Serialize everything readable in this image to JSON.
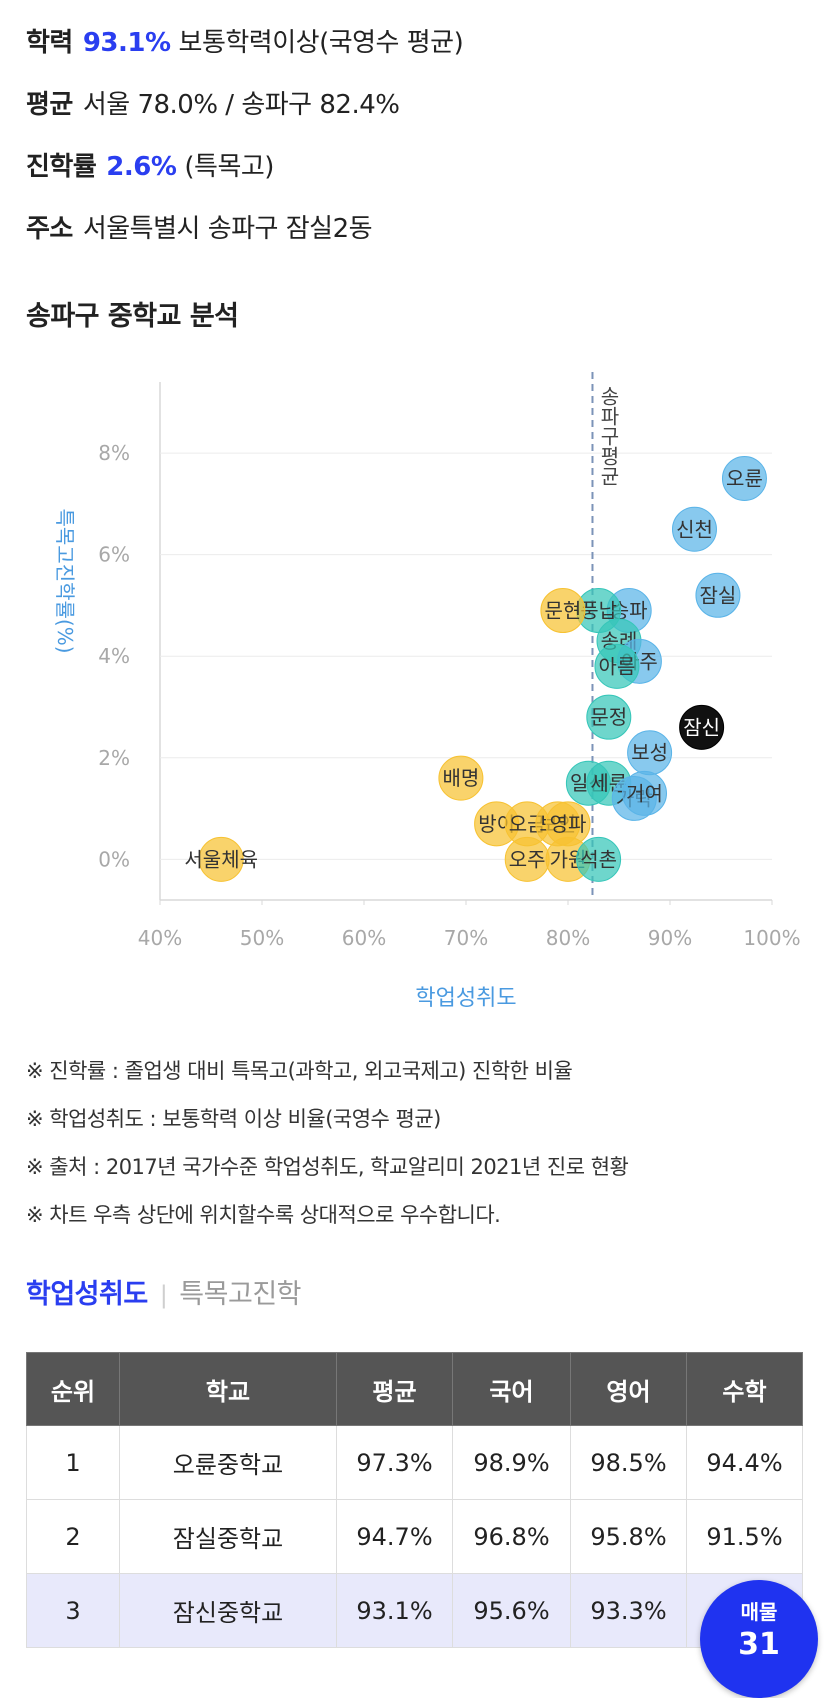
{
  "summary": {
    "line1": {
      "label": "학력",
      "value": "93.1%",
      "rest": "보통학력이상(국영수 평균)"
    },
    "line2": {
      "label": "평균",
      "rest": "서울 78.0% / 송파구 82.4%"
    },
    "line3": {
      "label": "진학률",
      "value": "2.6%",
      "rest": "(특목고)"
    },
    "line4": {
      "label": "주소",
      "rest": "서울특별시 송파구 잠실2동"
    }
  },
  "section_title": "송파구 중학교 분석",
  "chart_data": {
    "type": "scatter",
    "xlabel": "학업성취도",
    "ylabel": "특목고진학률(%)",
    "x_ticks": [
      "40%",
      "50%",
      "60%",
      "70%",
      "80%",
      "90%",
      "100%"
    ],
    "y_ticks": [
      "0%",
      "2%",
      "4%",
      "6%",
      "8%"
    ],
    "xlim": [
      40,
      100
    ],
    "ylim": [
      -0.8,
      9.4
    ],
    "grid": true,
    "reference_line": {
      "x": 82.4,
      "label": "송파구평균"
    },
    "colors": {
      "blue": "#5ab4e8",
      "teal": "#36c6b9",
      "yellow": "#f7c232",
      "black": "#111111"
    },
    "points": [
      {
        "name": "오륜",
        "x": 97.3,
        "y": 7.5,
        "color": "blue"
      },
      {
        "name": "신천",
        "x": 92.4,
        "y": 6.5,
        "color": "blue"
      },
      {
        "name": "잠실",
        "x": 94.7,
        "y": 5.2,
        "color": "blue"
      },
      {
        "name": "잠신",
        "x": 93.1,
        "y": 2.6,
        "color": "black"
      },
      {
        "name": "송파",
        "x": 86.0,
        "y": 4.9,
        "color": "blue"
      },
      {
        "name": "풍납",
        "x": 83.0,
        "y": 4.9,
        "color": "teal"
      },
      {
        "name": "문현",
        "x": 79.5,
        "y": 4.9,
        "color": "yellow"
      },
      {
        "name": "송례",
        "x": 85.0,
        "y": 4.3,
        "color": "teal"
      },
      {
        "name": "아주",
        "x": 87.0,
        "y": 3.9,
        "color": "blue"
      },
      {
        "name": "아름",
        "x": 84.8,
        "y": 3.8,
        "color": "teal"
      },
      {
        "name": "보성",
        "x": 88.0,
        "y": 2.1,
        "color": "blue"
      },
      {
        "name": "문정",
        "x": 84.0,
        "y": 2.8,
        "color": "teal"
      },
      {
        "name": "배명",
        "x": 69.5,
        "y": 1.6,
        "color": "yellow"
      },
      {
        "name": "일신",
        "x": 82.0,
        "y": 1.5,
        "color": "teal"
      },
      {
        "name": "세륜",
        "x": 84.0,
        "y": 1.5,
        "color": "teal"
      },
      {
        "name": "가락",
        "x": 86.5,
        "y": 1.2,
        "color": "blue"
      },
      {
        "name": "거여",
        "x": 87.5,
        "y": 1.3,
        "color": "blue"
      },
      {
        "name": "방이",
        "x": 73.0,
        "y": 0.7,
        "color": "yellow"
      },
      {
        "name": "오금",
        "x": 76.0,
        "y": 0.7,
        "color": "yellow"
      },
      {
        "name": "보인",
        "x": 79.0,
        "y": 0.7,
        "color": "yellow"
      },
      {
        "name": "영파",
        "x": 80.0,
        "y": 0.7,
        "color": "yellow"
      },
      {
        "name": "오주",
        "x": 76.0,
        "y": 0.0,
        "color": "yellow"
      },
      {
        "name": "가원",
        "x": 80.0,
        "y": 0.0,
        "color": "yellow"
      },
      {
        "name": "석촌",
        "x": 83.0,
        "y": 0.0,
        "color": "teal"
      },
      {
        "name": "서울체육",
        "x": 46.0,
        "y": 0.0,
        "color": "yellow"
      }
    ]
  },
  "notes": [
    "※ 진학률 : 졸업생 대비 특목고(과학고, 외고국제고) 진학한 비율",
    "※ 학업성취도 : 보통학력 이상 비율(국영수 평균)",
    "※ 출처 : 2017년 국가수준 학업성취도, 학교알리미 2021년 진로 현황",
    "※ 차트 우측 상단에 위치할수록 상대적으로 우수합니다."
  ],
  "tabs": {
    "active": "학업성취도",
    "separator": "|",
    "inactive": "특목고진학"
  },
  "table": {
    "headers": [
      "순위",
      "학교",
      "평균",
      "국어",
      "영어",
      "수학"
    ],
    "rows": [
      [
        "1",
        "오륜중학교",
        "97.3%",
        "98.9%",
        "98.5%",
        "94.4%"
      ],
      [
        "2",
        "잠실중학교",
        "94.7%",
        "96.8%",
        "95.8%",
        "91.5%"
      ],
      [
        "3",
        "잠신중학교",
        "93.1%",
        "95.6%",
        "93.3%",
        ""
      ]
    ]
  },
  "fab": {
    "line1": "매물",
    "line2": "31"
  }
}
